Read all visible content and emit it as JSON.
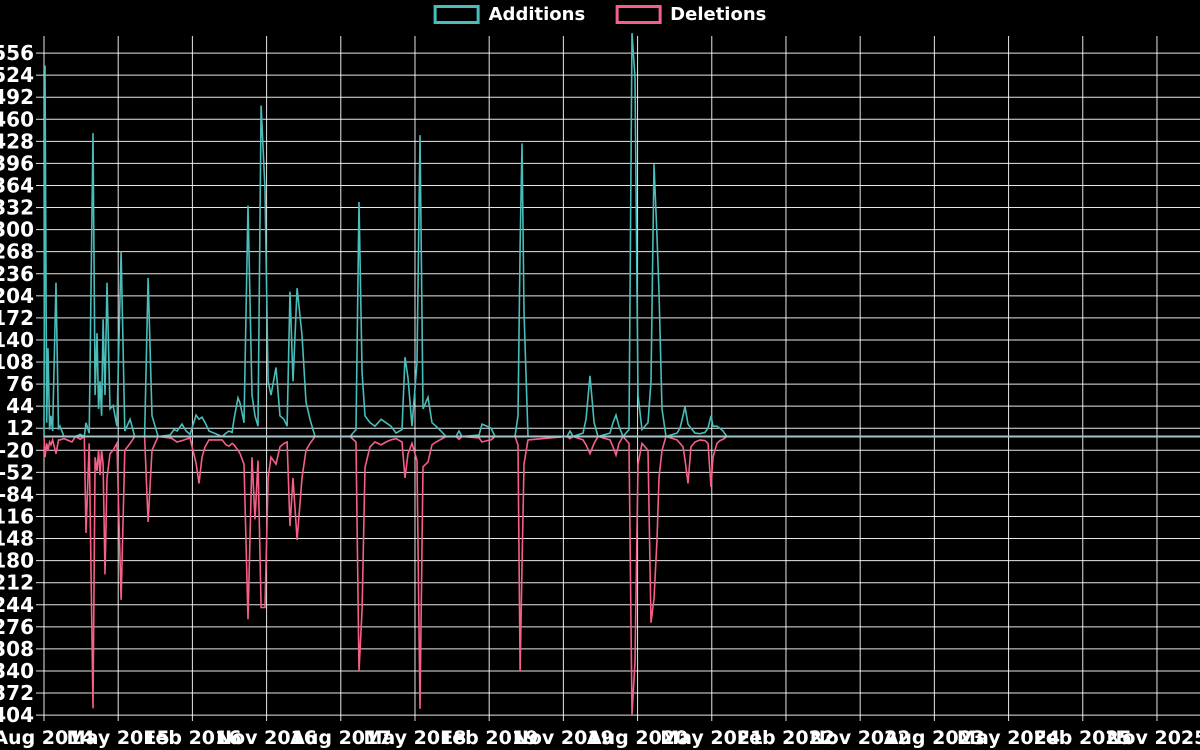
{
  "legend": {
    "items": [
      {
        "label": "Additions",
        "color": "#49bdba"
      },
      {
        "label": "Deletions",
        "color": "#f65f87"
      }
    ]
  },
  "style": {
    "background": "#000000",
    "grid_color": "#ffffff",
    "text_color": "#ffffff",
    "baseline_color": "#a5c4cd",
    "additions_color": "#49bdba",
    "deletions_color": "#f65f87"
  },
  "chart_data": {
    "type": "line",
    "title": "",
    "xlabel": "",
    "ylabel": "",
    "grid": true,
    "legend_position": "top-center",
    "y_axis": {
      "min": -404,
      "max": 556,
      "tick_step": 32,
      "tick_labels": [
        "556",
        "524",
        "492",
        "460",
        "428",
        "396",
        "364",
        "332",
        "300",
        "268",
        "236",
        "204",
        "172",
        "140",
        "108",
        "76",
        "44",
        "12",
        "-20",
        "-52",
        "-84",
        "-116",
        "-148",
        "-180",
        "-212",
        "-244",
        "-276",
        "-308",
        "-340",
        "-372",
        "-404"
      ]
    },
    "x_axis": {
      "start_year": 2014.583,
      "years_per_tick": 0.75,
      "tick_labels": [
        "Aug 2014",
        "May 2015",
        "Feb 2016",
        "Nov 2016",
        "Aug 2017",
        "May 2018",
        "Feb 2019",
        "Nov 2019",
        "Aug 2020",
        "May 2021",
        "Feb 2022",
        "Nov 2022",
        "Aug 2023",
        "May 2024",
        "Feb 2025",
        "Nov 2025"
      ]
    },
    "x": [
      2014.583,
      2014.593,
      2014.61,
      2014.623,
      2014.64,
      2014.654,
      2014.67,
      2014.704,
      2014.73,
      2014.745,
      2014.785,
      2014.866,
      2014.9,
      2014.95,
      2014.99,
      2015.008,
      2015.04,
      2015.078,
      2015.1,
      2015.119,
      2015.135,
      2015.149,
      2015.165,
      2015.18,
      2015.2,
      2015.22,
      2015.25,
      2015.281,
      2015.32,
      2015.362,
      2015.4,
      2015.453,
      2015.5,
      2015.6,
      2015.635,
      2015.675,
      2015.736,
      2015.857,
      2015.877,
      2015.897,
      2015.928,
      2015.978,
      2016.019,
      2016.059,
      2016.12,
      2016.15,
      2016.18,
      2016.211,
      2016.251,
      2016.383,
      2016.423,
      2016.453,
      2016.484,
      2016.504,
      2016.544,
      2016.565,
      2016.605,
      2016.645,
      2016.686,
      2016.716,
      2016.746,
      2016.777,
      2016.817,
      2016.848,
      2016.878,
      2016.928,
      2016.969,
      2017.009,
      2017.04,
      2017.07,
      2017.1,
      2017.141,
      2017.191,
      2017.231,
      2017.272,
      2017.322,
      2017.676,
      2017.737,
      2017.767,
      2017.798,
      2017.828,
      2017.878,
      2017.929,
      2017.99,
      2018.04,
      2018.091,
      2018.141,
      2018.202,
      2018.232,
      2018.262,
      2018.303,
      2018.353,
      2018.384,
      2018.414,
      2018.465,
      2018.505,
      2018.545,
      2018.596,
      2018.646,
      2018.747,
      2018.778,
      2018.808,
      2018.98,
      2019.01,
      2019.061,
      2019.101,
      2019.142,
      2019.344,
      2019.374,
      2019.395,
      2019.415,
      2019.435,
      2019.475,
      2019.87,
      2019.9,
      2019.93,
      2020.031,
      2020.062,
      2020.102,
      2020.143,
      2020.183,
      2020.304,
      2020.335,
      2020.365,
      2020.395,
      2020.436,
      2020.496,
      2020.527,
      2020.557,
      2020.587,
      2020.628,
      2020.688,
      2020.719,
      2020.749,
      2020.779,
      2020.8,
      2020.83,
      2020.87,
      2020.981,
      2021.012,
      2021.042,
      2021.062,
      2021.093,
      2021.123,
      2021.163,
      2021.214,
      2021.264,
      2021.295,
      2021.325,
      2021.345,
      2021.385,
      2021.416,
      2021.446,
      2021.486,
      2026.26
    ],
    "series": [
      {
        "name": "Additions",
        "color": "#49bdba",
        "values": [
          0,
          538,
          20,
          128,
          10,
          30,
          8,
          223,
          10,
          15,
          0,
          0,
          0,
          3,
          0,
          20,
          5,
          440,
          60,
          150,
          40,
          80,
          30,
          170,
          60,
          223,
          40,
          45,
          15,
          268,
          8,
          25,
          0,
          0,
          230,
          30,
          0,
          2,
          6,
          10,
          8,
          18,
          8,
          3,
          31,
          25,
          28,
          20,
          8,
          0,
          5,
          8,
          6,
          25,
          56,
          48,
          20,
          335,
          60,
          30,
          15,
          480,
          358,
          80,
          60,
          100,
          30,
          25,
          15,
          210,
          80,
          215,
          147,
          50,
          25,
          0,
          0,
          10,
          340,
          92,
          30,
          20,
          15,
          25,
          20,
          15,
          5,
          10,
          115,
          85,
          15,
          107,
          437,
          40,
          57,
          20,
          15,
          8,
          0,
          0,
          8,
          0,
          2,
          18,
          15,
          12,
          0,
          0,
          30,
          275,
          425,
          181,
          0,
          0,
          8,
          0,
          5,
          25,
          88,
          20,
          0,
          5,
          20,
          31,
          15,
          0,
          10,
          585,
          520,
          60,
          10,
          20,
          80,
          395,
          290,
          210,
          40,
          0,
          5,
          12,
          30,
          43,
          18,
          12,
          5,
          4,
          6,
          12,
          30,
          15,
          15,
          12,
          8,
          0,
          0
        ]
      },
      {
        "name": "Deletions",
        "color": "#f65f87",
        "values": [
          0,
          -30,
          -10,
          -20,
          -8,
          -12,
          -5,
          -25,
          -5,
          -5,
          -3,
          -8,
          0,
          -4,
          0,
          -140,
          -10,
          -394,
          -30,
          -50,
          -20,
          -56,
          -20,
          -40,
          -200,
          -60,
          -25,
          -20,
          -10,
          -237,
          -20,
          -10,
          0,
          0,
          -124,
          -20,
          0,
          -2,
          -3,
          -5,
          -8,
          -6,
          -4,
          -2,
          -39,
          -68,
          -30,
          -15,
          -5,
          -5,
          -12,
          -14,
          -10,
          -12,
          -20,
          -25,
          -40,
          -265,
          -30,
          -120,
          -35,
          -248,
          -248,
          -60,
          -30,
          -40,
          -15,
          -10,
          -8,
          -130,
          -60,
          -150,
          -60,
          -20,
          -10,
          0,
          0,
          -8,
          -340,
          -250,
          -45,
          -15,
          -8,
          -12,
          -8,
          -5,
          -3,
          -8,
          -60,
          -25,
          -10,
          -35,
          -395,
          -44,
          -37,
          -12,
          -8,
          -4,
          0,
          0,
          -4,
          0,
          -2,
          -8,
          -6,
          -5,
          0,
          0,
          -12,
          -340,
          -189,
          -40,
          -5,
          0,
          -3,
          0,
          -5,
          -12,
          -25,
          -10,
          0,
          -5,
          -15,
          -27,
          -10,
          0,
          -10,
          -403,
          -327,
          -40,
          -10,
          -20,
          -270,
          -235,
          -150,
          -60,
          -20,
          0,
          -5,
          -10,
          -15,
          -34,
          -68,
          -15,
          -8,
          -5,
          -6,
          -10,
          -73,
          -30,
          -10,
          -6,
          -4,
          0,
          0
        ]
      }
    ]
  }
}
